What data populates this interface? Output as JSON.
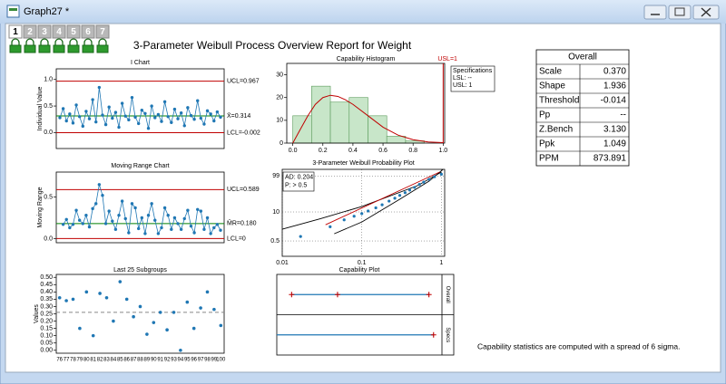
{
  "window": {
    "title": "Graph27 *"
  },
  "layer_tabs": [
    "1",
    "2",
    "3",
    "4",
    "5",
    "6",
    "7"
  ],
  "report_title": "3-Parameter Weibull Process Overview Report for Weight",
  "chart_data": [
    {
      "type": "control",
      "title": "I Chart",
      "y_label": "Individual Value",
      "color": "#1f77b4",
      "values": [
        0.28,
        0.45,
        0.22,
        0.35,
        0.18,
        0.52,
        0.3,
        0.12,
        0.4,
        0.26,
        0.62,
        0.2,
        0.85,
        0.33,
        0.15,
        0.48,
        0.27,
        0.38,
        0.1,
        0.55,
        0.31,
        0.24,
        0.66,
        0.29,
        0.17,
        0.42,
        0.36,
        0.08,
        0.5,
        0.28,
        0.34,
        0.21,
        0.58,
        0.3,
        0.19,
        0.44,
        0.26,
        0.37,
        0.13,
        0.47,
        0.32,
        0.25,
        0.6,
        0.27,
        0.16,
        0.41,
        0.35,
        0.22,
        0.39,
        0.29
      ],
      "ylim": [
        -0.3,
        1.2
      ],
      "yticks": [
        {
          "value": 0,
          "label": "0.0"
        },
        {
          "value": 0.5,
          "label": "0.5"
        },
        {
          "value": 1,
          "label": "1.0"
        }
      ],
      "limits": [
        {
          "value": 0.967,
          "label": "UCL=0.967",
          "color": "#c00000"
        },
        {
          "value": 0.314,
          "label": "X̄=0.314",
          "color": "#008000"
        },
        {
          "value": -0.002,
          "label": "LCL=-0.002",
          "color": "#c00000"
        }
      ]
    },
    {
      "type": "control",
      "title": "Moving Range Chart",
      "y_label": "Moving Range",
      "color": "#1f77b4",
      "values": [
        0.17,
        0.23,
        0.13,
        0.17,
        0.34,
        0.22,
        0.18,
        0.28,
        0.14,
        0.36,
        0.42,
        0.65,
        0.52,
        0.18,
        0.33,
        0.21,
        0.11,
        0.28,
        0.45,
        0.24,
        0.07,
        0.42,
        0.37,
        0.12,
        0.25,
        0.06,
        0.28,
        0.42,
        0.22,
        0.06,
        0.13,
        0.37,
        0.28,
        0.11,
        0.25,
        0.18,
        0.11,
        0.24,
        0.34,
        0.15,
        0.07,
        0.35,
        0.33,
        0.11,
        0.25,
        0.06,
        0.13,
        0.17,
        0.1
      ],
      "ylim": [
        -0.05,
        0.8
      ],
      "yticks": [
        {
          "value": 0,
          "label": "0.0"
        },
        {
          "value": 0.5,
          "label": "0.5"
        }
      ],
      "limits": [
        {
          "value": 0.589,
          "label": "UCL=0.589",
          "color": "#c00000"
        },
        {
          "value": 0.18,
          "label": "M̄R=0.180",
          "color": "#008000"
        },
        {
          "value": 0,
          "label": "LCL=0",
          "color": "#c00000"
        }
      ]
    },
    {
      "type": "scatter",
      "title": "Last 25 Subgroups",
      "y_label": "Values",
      "color": "#1f77b4",
      "categories": [
        "76",
        "77",
        "78",
        "79",
        "80",
        "81",
        "82",
        "83",
        "84",
        "85",
        "86",
        "87",
        "88",
        "89",
        "90",
        "91",
        "92",
        "93",
        "94",
        "95",
        "96",
        "97",
        "98",
        "99",
        "100"
      ],
      "values": [
        0.36,
        0.34,
        0.35,
        0.15,
        0.4,
        0.1,
        0.39,
        0.36,
        0.2,
        0.47,
        0.35,
        0.23,
        0.3,
        0.11,
        0.19,
        0.26,
        0.14,
        0.26,
        0.0,
        0.33,
        0.15,
        0.29,
        0.4,
        0.28,
        0.17
      ],
      "center_line": 0.26,
      "ylim": [
        -0.02,
        0.52
      ],
      "yticks": [
        {
          "value": 0,
          "label": "0.00"
        },
        {
          "value": 0.05,
          "label": "0.05"
        },
        {
          "value": 0.1,
          "label": "0.10"
        },
        {
          "value": 0.15,
          "label": "0.15"
        },
        {
          "value": 0.2,
          "label": "0.20"
        },
        {
          "value": 0.25,
          "label": "0.25"
        },
        {
          "value": 0.3,
          "label": "0.30"
        },
        {
          "value": 0.35,
          "label": "0.35"
        },
        {
          "value": 0.4,
          "label": "0.40"
        },
        {
          "value": 0.45,
          "label": "0.45"
        },
        {
          "value": 0.5,
          "label": "0.50"
        }
      ]
    },
    {
      "type": "histogram",
      "title": "Capability Histogram",
      "color": "#c8e6c9",
      "bins": [
        0,
        0.125,
        0.25,
        0.375,
        0.5,
        0.625,
        0.75,
        0.875
      ],
      "counts": [
        12,
        25,
        18,
        20,
        12,
        3,
        1
      ],
      "fit": {
        "color": "#c00000",
        "x": [
          0,
          0.05,
          0.1,
          0.15,
          0.2,
          0.25,
          0.3,
          0.35,
          0.4,
          0.5,
          0.6,
          0.7,
          0.8,
          0.9,
          1.0
        ],
        "y": [
          0,
          6,
          12,
          17,
          20,
          21,
          20.5,
          19,
          17,
          12,
          7,
          3.5,
          1.5,
          0.5,
          0.2
        ]
      },
      "xlim": [
        -0.04,
        1.01
      ],
      "xticks": [
        {
          "value": 0,
          "label": "0.0"
        },
        {
          "value": 0.2,
          "label": "0.2"
        },
        {
          "value": 0.4,
          "label": "0.4"
        },
        {
          "value": 0.6,
          "label": "0.6"
        },
        {
          "value": 0.8,
          "label": "0.8"
        },
        {
          "value": 1,
          "label": "1.0"
        }
      ],
      "ylim": [
        0,
        35
      ],
      "yticks": [
        0,
        10,
        20,
        30
      ],
      "usl": {
        "value": 1,
        "label": "USL=1"
      },
      "specs": [
        "Specifications",
        "LSL: --",
        "USL: 1"
      ]
    },
    {
      "type": "probability",
      "title": "3-Parameter Weibull Probability Plot",
      "color": "#1f77b4",
      "grid": true,
      "xlim": [
        0.01,
        1.1
      ],
      "xticks": [
        0.01,
        0.1,
        1
      ],
      "ylim": [
        0.1,
        99.99
      ],
      "yticks": [
        0.5,
        10,
        99
      ],
      "x": [
        0.017,
        0.04,
        0.06,
        0.08,
        0.1,
        0.12,
        0.15,
        0.18,
        0.22,
        0.26,
        0.3,
        0.35,
        0.4,
        0.46,
        0.53,
        0.6,
        0.7,
        0.82,
        1.0
      ],
      "y": [
        0.8,
        2.2,
        4.5,
        6.5,
        8.5,
        11,
        15,
        20,
        28,
        36,
        45,
        55,
        65,
        75,
        85,
        91,
        96,
        98.6,
        99.6
      ],
      "fit": {
        "color": "#c00000",
        "x": [
          0.035,
          0.95
        ],
        "y": [
          2.7,
          99.9
        ]
      },
      "ci_upper": {
        "color": "#000000",
        "x": [
          0.01,
          0.03,
          0.1,
          0.5,
          1
        ],
        "y": [
          1.7,
          5,
          17,
          81,
          99.9
        ]
      },
      "ci_lower": {
        "color": "#000000",
        "x": [
          0.045,
          0.1,
          0.3,
          0.7,
          1.05
        ],
        "y": [
          1.06,
          3.6,
          33,
          93,
          99.99
        ]
      },
      "stats": [
        "AD: 0.204",
        "P: > 0.5"
      ]
    },
    {
      "type": "capability",
      "title": "Capability Plot",
      "line_color": "#1f77b4",
      "marker_color": "#c00000",
      "xlim": [
        -0.12,
        1.06
      ],
      "rows": [
        {
          "name": "Overall",
          "values": [
            -0.014,
            0.314,
            0.967
          ]
        },
        {
          "name": "Specs",
          "values": [
            1
          ]
        }
      ]
    }
  ],
  "table": {
    "header": "Overall",
    "rows": [
      [
        "Scale",
        "0.370"
      ],
      [
        "Shape",
        "1.936"
      ],
      [
        "Threshold",
        "-0.014"
      ],
      [
        "Pp",
        "--"
      ],
      [
        "Z.Bench",
        "3.130"
      ],
      [
        "Ppk",
        "1.049"
      ],
      [
        "PPM",
        "873.891"
      ]
    ]
  },
  "footnote": "Capability statistics are computed with a spread of 6 sigma."
}
